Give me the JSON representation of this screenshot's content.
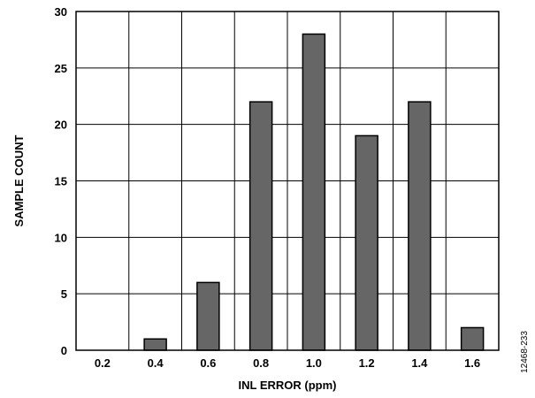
{
  "chart_data": {
    "type": "bar",
    "categories": [
      "0.2",
      "0.4",
      "0.6",
      "0.8",
      "1.0",
      "1.2",
      "1.4",
      "1.6"
    ],
    "values": [
      0,
      1,
      6,
      22,
      28,
      19,
      22,
      2
    ],
    "xlabel": "INL ERROR (ppm)",
    "ylabel": "SAMPLE COUNT",
    "ylim": [
      0,
      30
    ],
    "yticks": [
      "0",
      "5",
      "10",
      "15",
      "20",
      "25",
      "30"
    ],
    "grid": true,
    "bar_color": "#666666",
    "figure_id": "12468-233"
  }
}
